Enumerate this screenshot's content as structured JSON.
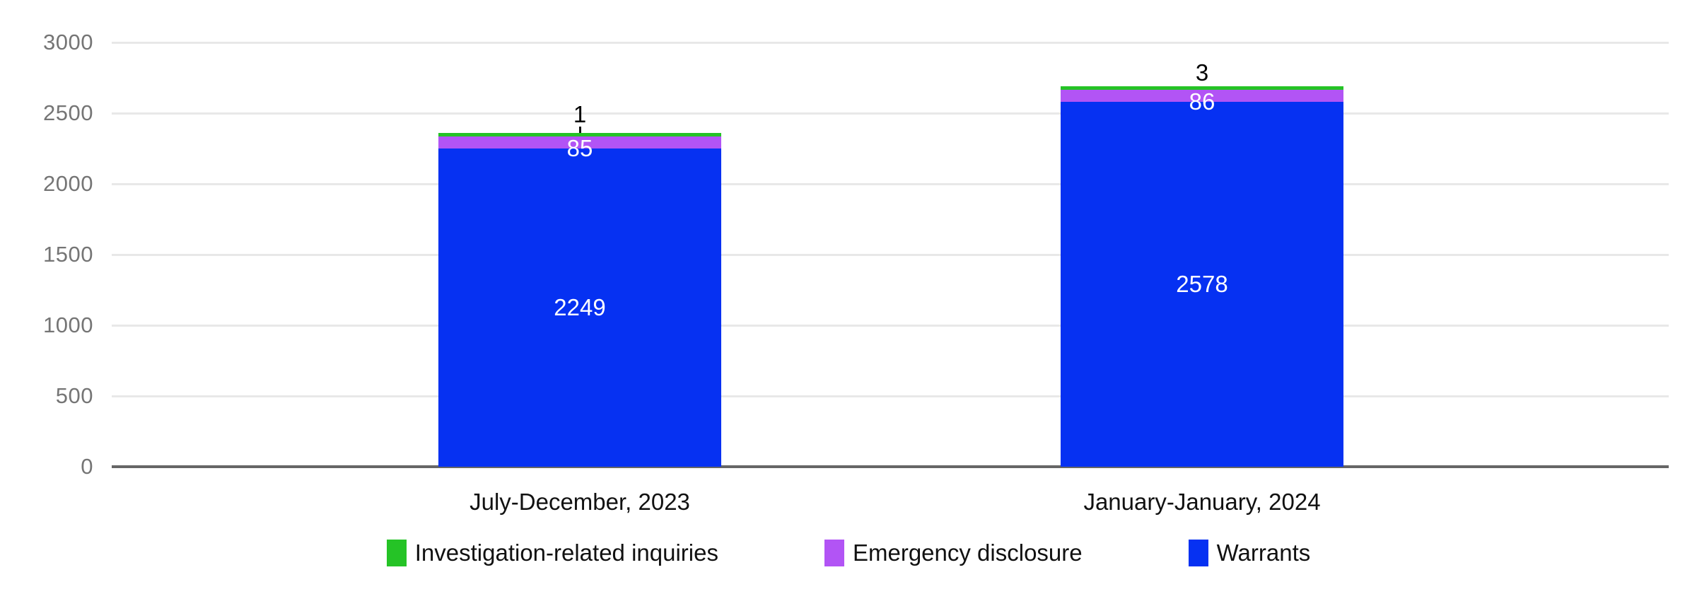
{
  "chart_data": {
    "type": "bar",
    "stacked": true,
    "title": "",
    "xlabel": "",
    "ylabel": "",
    "categories": [
      "July-December, 2023",
      "January-January, 2024"
    ],
    "series": [
      {
        "name": "Warrants",
        "color": "#0631f2",
        "values": [
          2249,
          2578
        ],
        "label_color": "#ffffff",
        "label_placement": "inside"
      },
      {
        "name": "Emergency disclosure",
        "color": "#b254f5",
        "values": [
          85,
          86
        ],
        "label_color": "#ffffff",
        "label_placement": "inside"
      },
      {
        "name": "Investigation-related inquiries",
        "color": "#25c326",
        "values": [
          1,
          3
        ],
        "label_color": "#000000",
        "label_placement": "above",
        "label_gaps": [
          9,
          2
        ],
        "leader_lines": [
          true,
          false
        ]
      }
    ],
    "ylim": [
      0,
      3000
    ],
    "yticks": [
      0,
      500,
      1000,
      1500,
      2000,
      2500,
      3000
    ],
    "grid": "horizontal-only",
    "gridline_color": "#e8e8e8",
    "axis_line_color": "#666666",
    "tick_label_color": "#757575",
    "legend_position": "bottom",
    "legend_order": [
      "Investigation-related inquiries",
      "Emergency disclosure",
      "Warrants"
    ]
  }
}
